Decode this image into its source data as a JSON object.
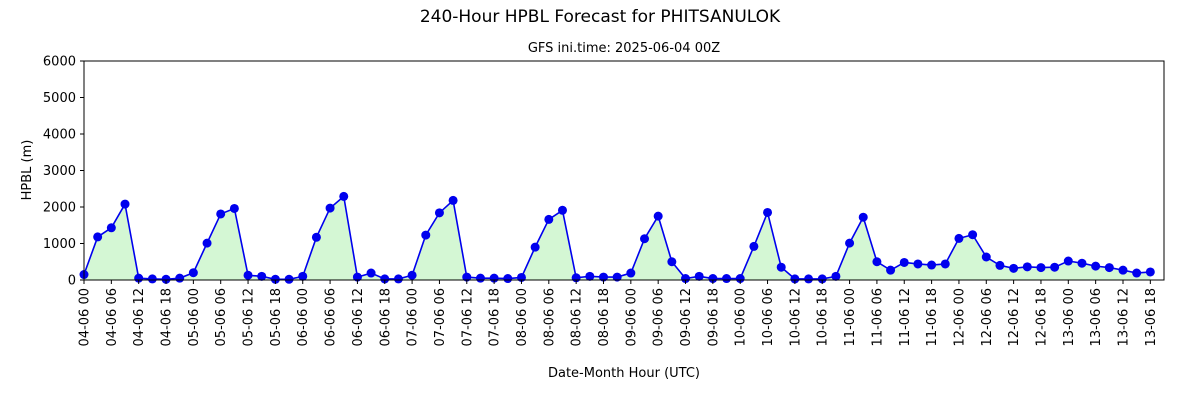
{
  "chart_data": {
    "type": "area",
    "title": "240-Hour HPBL Forecast for PHITSANULOK",
    "subtitle": "GFS ini.time: 2025-06-04 00Z",
    "xlabel": "Date-Month Hour (UTC)",
    "ylabel": "HPBL (m)",
    "ylim": [
      0,
      6000
    ],
    "yticks": [
      0,
      1000,
      2000,
      3000,
      4000,
      5000,
      6000
    ],
    "xticks": [
      "04-06 00",
      "04-06 06",
      "04-06 12",
      "04-06 18",
      "05-06 00",
      "05-06 06",
      "05-06 12",
      "05-06 18",
      "06-06 00",
      "06-06 06",
      "06-06 12",
      "06-06 18",
      "07-06 00",
      "07-06 06",
      "07-06 12",
      "07-06 18",
      "08-06 00",
      "08-06 06",
      "08-06 12",
      "08-06 18",
      "09-06 00",
      "09-06 06",
      "09-06 12",
      "09-06 18",
      "10-06 00",
      "10-06 06",
      "10-06 12",
      "10-06 18",
      "11-06 00",
      "11-06 06",
      "11-06 12",
      "11-06 18",
      "12-06 00",
      "12-06 06",
      "12-06 12",
      "12-06 18",
      "13-06 00",
      "13-06 06",
      "13-06 12",
      "13-06 18"
    ],
    "x_step_hours": 3,
    "xlim_hours": [
      0,
      237
    ],
    "grid": false,
    "line_color": "#0000ee",
    "fill_color": "#d4f7d4",
    "marker_color": "#0000ee",
    "values": [
      150,
      1180,
      1430,
      2080,
      50,
      30,
      20,
      50,
      200,
      1010,
      1810,
      1960,
      130,
      100,
      20,
      20,
      100,
      1170,
      1970,
      2290,
      80,
      190,
      30,
      30,
      130,
      1230,
      1840,
      2180,
      80,
      50,
      50,
      40,
      70,
      900,
      1660,
      1910,
      60,
      100,
      80,
      80,
      190,
      1130,
      1750,
      500,
      40,
      100,
      40,
      40,
      40,
      920,
      1850,
      350,
      30,
      30,
      30,
      100,
      1010,
      1720,
      500,
      270,
      480,
      440,
      410,
      440,
      1140,
      1240,
      630,
      400,
      320,
      360,
      340,
      350,
      520,
      460,
      380,
      340,
      270,
      190,
      220
    ]
  }
}
